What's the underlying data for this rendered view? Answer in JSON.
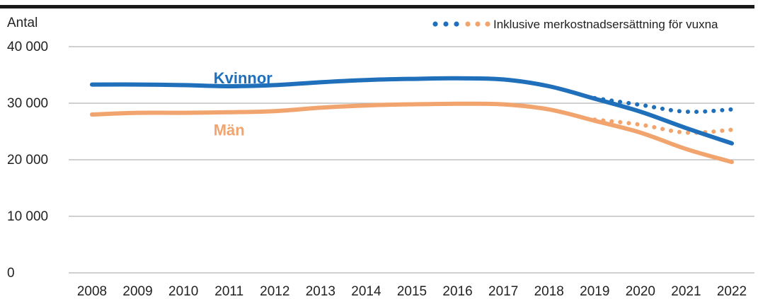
{
  "chart_data": {
    "type": "line",
    "title": "",
    "xlabel": "",
    "ylabel": "Antal",
    "ylim": [
      0,
      40000
    ],
    "yticks": [
      {
        "value": 0,
        "label": "0"
      },
      {
        "value": 10000,
        "label": "10 000"
      },
      {
        "value": 20000,
        "label": "20 000"
      },
      {
        "value": 30000,
        "label": "30 000"
      },
      {
        "value": 40000,
        "label": "40 000"
      }
    ],
    "grid": true,
    "legend_placement": "top-right",
    "legend_label": "Inklusive merkostnadsersättning för vuxna",
    "x": [
      "2008",
      "2009",
      "2010",
      "2011",
      "2012",
      "2013",
      "2014",
      "2015",
      "2016",
      "2017",
      "2018",
      "2019",
      "2020",
      "2021",
      "2022"
    ],
    "series": [
      {
        "name": "Kvinnor",
        "color": "#1f6fba",
        "style": "solid",
        "values": [
          33300,
          33300,
          33200,
          33000,
          33200,
          33700,
          34100,
          34300,
          34400,
          34200,
          33000,
          30800,
          28500,
          25600,
          22900
        ]
      },
      {
        "name": "Män",
        "color": "#f2a46f",
        "style": "solid",
        "values": [
          28000,
          28300,
          28300,
          28400,
          28600,
          29200,
          29600,
          29800,
          29900,
          29800,
          28900,
          26900,
          24800,
          21900,
          19600
        ]
      },
      {
        "name": "Kvinnor (inkl. merkostnadsersättning)",
        "color": "#1f6fba",
        "style": "dotted",
        "x": [
          "2019",
          "2020",
          "2021",
          "2022"
        ],
        "values": [
          30900,
          29700,
          28500,
          28900
        ]
      },
      {
        "name": "Män (inkl. merkostnadsersättning)",
        "color": "#f2a46f",
        "style": "dotted",
        "x": [
          "2019",
          "2020",
          "2021",
          "2022"
        ],
        "values": [
          27100,
          26200,
          24800,
          25300
        ]
      }
    ],
    "series_labels": [
      {
        "series": 0,
        "text": "Kvinnor",
        "at_x": "2011",
        "offset": 34500
      },
      {
        "series": 1,
        "text": "Män",
        "at_x": "2011",
        "offset": 25300
      }
    ]
  }
}
